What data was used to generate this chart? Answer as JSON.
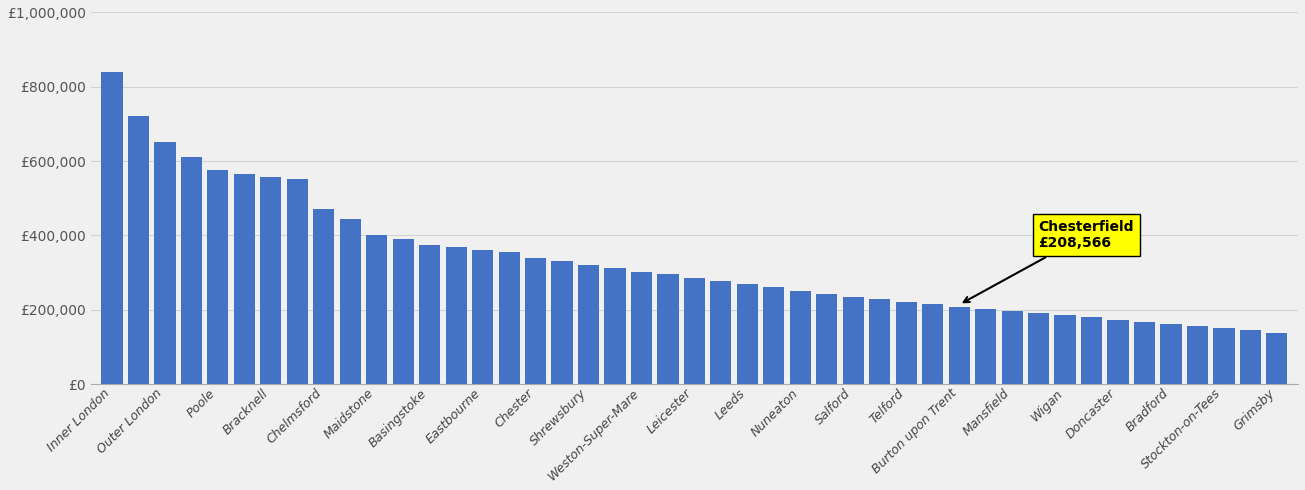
{
  "categories": [
    "Inner London",
    "",
    "Outer London",
    "",
    "Poole",
    "",
    "Bracknell",
    "",
    "Chelmsford",
    "",
    "Maidstone",
    "",
    "Basingstoke",
    "",
    "Eastbourne",
    "",
    "Chester",
    "",
    "Shrewsbury",
    "",
    "Weston-Super-Mare",
    "",
    "Leicester",
    "",
    "Leeds",
    "",
    "Nuneaton",
    "",
    "Salford",
    "",
    "Telford",
    "",
    "Burton upon Trent",
    "",
    "Mansfield",
    "",
    "Wigan",
    "",
    "Doncaster",
    "",
    "Bradford",
    "",
    "Stockton-on-Tees",
    "",
    "Grimsby"
  ],
  "values": [
    840000,
    720000,
    650000,
    610000,
    575000,
    565000,
    558000,
    553000,
    470000,
    445000,
    400000,
    390000,
    375000,
    370000,
    360000,
    355000,
    340000,
    332000,
    320000,
    312000,
    302000,
    295000,
    285000,
    278000,
    268000,
    260000,
    250000,
    243000,
    235000,
    228000,
    220000,
    215000,
    208566,
    203000,
    197000,
    192000,
    186000,
    180000,
    173000,
    167000,
    161000,
    156000,
    151000,
    146000,
    138000
  ],
  "bar_color": "#4472c4",
  "highlight_index": 32,
  "highlight_label": "Chesterfield\n£208,566",
  "highlight_color": "#ffff00",
  "background_color": "#f0f0f0",
  "ylabel_color": "#555555",
  "ylim": [
    0,
    1000000
  ],
  "yticks": [
    0,
    200000,
    400000,
    600000,
    800000,
    1000000
  ],
  "ytick_labels": [
    "£0",
    "£200,000",
    "£400,000",
    "£600,000",
    "£800,000",
    "£1,000,000"
  ],
  "tick_label_positions": [
    0,
    2,
    4,
    6,
    8,
    10,
    12,
    14,
    16,
    18,
    20,
    22,
    24,
    26,
    28,
    30,
    32,
    34,
    36,
    38,
    40,
    42,
    44
  ],
  "tick_labels_shown": [
    "Inner London",
    "Outer London",
    "Poole",
    "Bracknell",
    "Chelmsford",
    "Maidstone",
    "Basingstoke",
    "Eastbourne",
    "Chester",
    "Shrewsbury",
    "Weston-Super-Mare",
    "Leicester",
    "Leeds",
    "Nuneaton",
    "Salford",
    "Telford",
    "Burton upon Trent",
    "Mansfield",
    "Wigan",
    "Doncaster",
    "Bradford",
    "Stockton-on-Tees",
    "Grimsby"
  ]
}
